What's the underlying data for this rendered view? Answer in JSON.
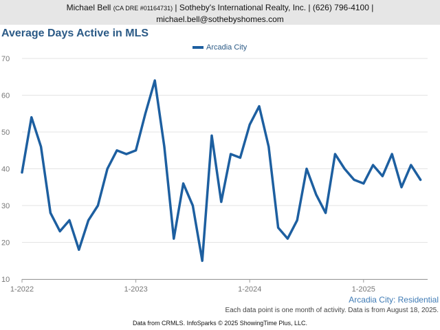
{
  "header": {
    "agent_name": "Michael Bell",
    "license": "(CA DRE #01164731)",
    "rest_line1": "| Sotheby's International Realty, Inc. | (626) 796-4100 |",
    "line2": "michael.bell@sothebyshomes.com"
  },
  "chart_data": {
    "type": "line",
    "title": "Average Days Active in MLS",
    "series": [
      {
        "name": "Arcadia City",
        "color": "#1d5fa0",
        "values": [
          39,
          54,
          46,
          28,
          23,
          26,
          18,
          26,
          30,
          40,
          45,
          44,
          45,
          55,
          64,
          46,
          21,
          36,
          30,
          15,
          49,
          31,
          44,
          43,
          52,
          57,
          46,
          24,
          21,
          26,
          40,
          33,
          28,
          44,
          40,
          37,
          36,
          41,
          38,
          44,
          35,
          41,
          37
        ]
      }
    ],
    "x_start": "2022-01",
    "x_tick_labels": [
      "1-2022",
      "1-2023",
      "1-2024",
      "1-2025"
    ],
    "y_ticks": [
      10,
      20,
      30,
      40,
      50,
      60,
      70
    ],
    "ylim": [
      10,
      70
    ],
    "grid": true,
    "legend_position": "top-center",
    "series_caption": "Arcadia City: Residential",
    "note": "Each data point is one month of activity. Data is from August 18, 2025."
  },
  "footer": "Data from CRMLS. InfoSparks © 2025 ShowingTime Plus, LLC."
}
